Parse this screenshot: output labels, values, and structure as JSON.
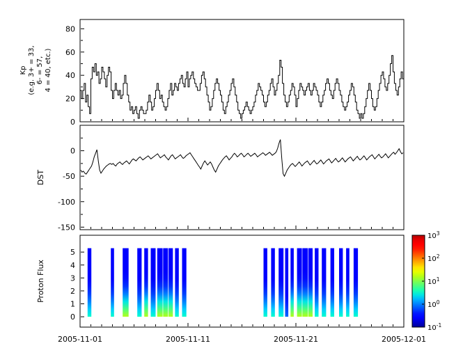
{
  "figure": {
    "background": "#ffffff",
    "x_axis": {
      "start_date": "2005-11-01",
      "end_date": "2005-12-01",
      "tick_labels": [
        "2005-11-01",
        "2005-11-11",
        "2005-11-21",
        "2005-12-01"
      ],
      "tick_days": [
        0,
        10,
        20,
        30
      ],
      "range_days": [
        0,
        30
      ]
    }
  },
  "chart_data": [
    {
      "type": "line",
      "panel": "kp",
      "line_style": "step",
      "line_color": "#000000",
      "ylabel_lines": [
        "Kp",
        "(e.g. 3+ = 33,",
        "6- = 57,",
        "4 = 40, etc.)"
      ],
      "ylim": [
        0,
        88
      ],
      "yticks": [
        0,
        20,
        40,
        60,
        80
      ],
      "cadence_hours": 3,
      "values": [
        27,
        20,
        27,
        33,
        17,
        23,
        13,
        7,
        37,
        47,
        43,
        50,
        40,
        43,
        33,
        37,
        47,
        43,
        37,
        30,
        40,
        47,
        43,
        27,
        20,
        27,
        33,
        27,
        23,
        27,
        20,
        23,
        33,
        40,
        33,
        23,
        17,
        10,
        13,
        7,
        10,
        13,
        7,
        3,
        10,
        13,
        10,
        7,
        7,
        10,
        17,
        23,
        17,
        10,
        13,
        20,
        27,
        33,
        27,
        20,
        23,
        17,
        13,
        10,
        13,
        20,
        27,
        33,
        23,
        27,
        33,
        30,
        27,
        33,
        37,
        40,
        33,
        30,
        37,
        43,
        30,
        37,
        40,
        43,
        37,
        33,
        30,
        27,
        27,
        33,
        40,
        43,
        37,
        30,
        23,
        17,
        10,
        13,
        20,
        27,
        33,
        37,
        33,
        27,
        23,
        17,
        10,
        7,
        13,
        17,
        23,
        27,
        33,
        37,
        30,
        23,
        17,
        10,
        7,
        3,
        7,
        10,
        13,
        17,
        13,
        10,
        7,
        10,
        13,
        17,
        23,
        27,
        33,
        30,
        27,
        23,
        17,
        13,
        17,
        23,
        27,
        33,
        37,
        30,
        23,
        27,
        33,
        40,
        53,
        47,
        33,
        23,
        17,
        13,
        17,
        23,
        27,
        33,
        30,
        23,
        13,
        20,
        27,
        33,
        30,
        27,
        23,
        27,
        30,
        33,
        27,
        23,
        27,
        33,
        30,
        27,
        23,
        17,
        13,
        17,
        23,
        27,
        33,
        37,
        33,
        27,
        23,
        20,
        27,
        33,
        37,
        33,
        27,
        23,
        17,
        13,
        10,
        13,
        17,
        23,
        27,
        33,
        30,
        23,
        17,
        10,
        7,
        3,
        7,
        3,
        7,
        13,
        20,
        27,
        33,
        27,
        20,
        13,
        10,
        13,
        20,
        27,
        33,
        40,
        43,
        37,
        30,
        27,
        33,
        40,
        50,
        57,
        43,
        33,
        27,
        23,
        30,
        37,
        43,
        37
      ]
    },
    {
      "type": "line",
      "panel": "dst",
      "line_style": "linear",
      "line_color": "#000000",
      "ylabel": "DST",
      "ylim": [
        -155,
        50
      ],
      "yticks": [
        0,
        -50,
        -100,
        -150
      ],
      "cadence_hours": 3,
      "values": [
        -38,
        -42,
        -40,
        -44,
        -46,
        -42,
        -38,
        -34,
        -30,
        -22,
        -12,
        -5,
        2,
        -20,
        -38,
        -44,
        -40,
        -36,
        -33,
        -30,
        -28,
        -26,
        -25,
        -27,
        -25,
        -28,
        -30,
        -26,
        -24,
        -22,
        -25,
        -27,
        -24,
        -22,
        -20,
        -23,
        -26,
        -22,
        -18,
        -16,
        -18,
        -20,
        -17,
        -14,
        -12,
        -15,
        -18,
        -16,
        -14,
        -12,
        -10,
        -13,
        -16,
        -14,
        -12,
        -10,
        -8,
        -6,
        -10,
        -14,
        -12,
        -10,
        -8,
        -12,
        -15,
        -18,
        -14,
        -10,
        -8,
        -12,
        -16,
        -14,
        -12,
        -10,
        -8,
        -12,
        -15,
        -13,
        -10,
        -8,
        -6,
        -4,
        -8,
        -12,
        -16,
        -20,
        -24,
        -28,
        -32,
        -36,
        -30,
        -24,
        -20,
        -24,
        -28,
        -25,
        -22,
        -26,
        -32,
        -38,
        -42,
        -36,
        -30,
        -26,
        -22,
        -18,
        -15,
        -12,
        -10,
        -14,
        -18,
        -15,
        -12,
        -8,
        -5,
        -8,
        -12,
        -10,
        -7,
        -5,
        -8,
        -12,
        -10,
        -7,
        -5,
        -8,
        -11,
        -9,
        -7,
        -5,
        -8,
        -12,
        -10,
        -8,
        -6,
        -4,
        -6,
        -9,
        -7,
        -5,
        -3,
        -6,
        -9,
        -7,
        -5,
        -2,
        5,
        15,
        22,
        -15,
        -45,
        -50,
        -44,
        -38,
        -34,
        -30,
        -27,
        -25,
        -28,
        -31,
        -28,
        -25,
        -22,
        -26,
        -30,
        -27,
        -24,
        -22,
        -20,
        -24,
        -28,
        -25,
        -22,
        -19,
        -23,
        -26,
        -24,
        -21,
        -18,
        -22,
        -26,
        -23,
        -20,
        -18,
        -16,
        -20,
        -24,
        -21,
        -18,
        -15,
        -19,
        -22,
        -20,
        -17,
        -14,
        -18,
        -22,
        -19,
        -16,
        -14,
        -12,
        -16,
        -20,
        -17,
        -14,
        -11,
        -15,
        -18,
        -16,
        -13,
        -10,
        -14,
        -18,
        -15,
        -12,
        -10,
        -8,
        -12,
        -16,
        -13,
        -10,
        -7,
        -11,
        -14,
        -12,
        -9,
        -6,
        -10,
        -14,
        -11,
        -8,
        -5,
        -3,
        -7,
        -4,
        0,
        4,
        -2,
        -6,
        -4
      ]
    },
    {
      "type": "heatmap",
      "panel": "proton_flux",
      "ylabel": "Proton Flux",
      "ylim": [
        -0.8,
        6.3
      ],
      "yticks": [
        0,
        1,
        2,
        3,
        4,
        5
      ],
      "bar_y_range": [
        0,
        5.3
      ],
      "colorbar": {
        "scale": "log",
        "tick_labels": [
          "10^3",
          "10^2",
          "10^1",
          "10^0",
          "10^-1"
        ],
        "tick_exponents": [
          3,
          2,
          1,
          0,
          -1
        ],
        "range_log": [
          -1,
          3
        ]
      },
      "profiles": {
        "cb": [
          0.5,
          0.3,
          0.0,
          -0.25,
          -0.4,
          -0.5,
          -0.55,
          -0.55,
          -0.55,
          -0.55
        ],
        "gb": [
          1.2,
          0.8,
          0.4,
          0.0,
          -0.3,
          -0.45,
          -0.55,
          -0.55,
          -0.55,
          -0.55
        ],
        "bb": [
          -0.1,
          -0.25,
          -0.4,
          -0.5,
          -0.55,
          -0.6,
          -0.6,
          -0.6,
          -0.6,
          -0.6
        ]
      },
      "bars": [
        {
          "t": 0.7,
          "w": 0.35,
          "p": "cb"
        },
        {
          "t": 2.85,
          "w": 0.3,
          "p": "cb"
        },
        {
          "t": 3.95,
          "w": 0.55,
          "p": "gb"
        },
        {
          "t": 5.3,
          "w": 0.4,
          "p": "cb"
        },
        {
          "t": 5.95,
          "w": 0.35,
          "p": "gb"
        },
        {
          "t": 6.55,
          "w": 0.45,
          "p": "cb"
        },
        {
          "t": 7.15,
          "w": 0.5,
          "p": "gb"
        },
        {
          "t": 7.7,
          "w": 0.45,
          "p": "gb"
        },
        {
          "t": 8.2,
          "w": 0.4,
          "p": "gb"
        },
        {
          "t": 8.8,
          "w": 0.35,
          "p": "cb"
        },
        {
          "t": 9.45,
          "w": 0.4,
          "p": "cb"
        },
        {
          "t": 17.0,
          "w": 0.35,
          "p": "cb"
        },
        {
          "t": 17.7,
          "w": 0.35,
          "p": "cb"
        },
        {
          "t": 18.4,
          "w": 0.45,
          "p": "cb"
        },
        {
          "t": 19.0,
          "w": 0.3,
          "p": "bb"
        },
        {
          "t": 19.5,
          "w": 0.3,
          "p": "gb"
        },
        {
          "t": 20.1,
          "w": 0.45,
          "p": "gb"
        },
        {
          "t": 20.6,
          "w": 0.5,
          "p": "gb"
        },
        {
          "t": 21.15,
          "w": 0.4,
          "p": "gb"
        },
        {
          "t": 21.75,
          "w": 0.35,
          "p": "cb"
        },
        {
          "t": 22.4,
          "w": 0.4,
          "p": "cb"
        },
        {
          "t": 23.2,
          "w": 0.35,
          "p": "cb"
        },
        {
          "t": 24.0,
          "w": 0.35,
          "p": "cb"
        },
        {
          "t": 24.65,
          "w": 0.3,
          "p": "cb"
        },
        {
          "t": 25.35,
          "w": 0.4,
          "p": "cb"
        }
      ]
    }
  ]
}
